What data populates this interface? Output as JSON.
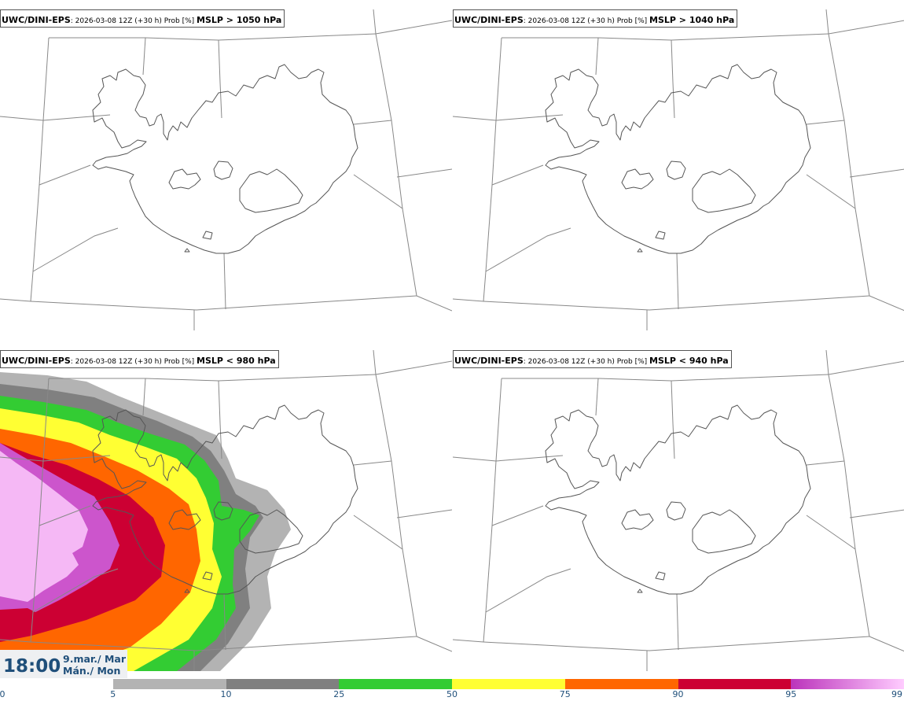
{
  "panels": [
    {
      "model": "UWC/DINI-EPS",
      "meta": ": 2026-03-08 12Z (+30 h) Prob [%] ",
      "field": "MSLP > 1050 hPa",
      "shaded": false
    },
    {
      "model": "UWC/DINI-EPS",
      "meta": ": 2026-03-08 12Z (+30 h) Prob [%] ",
      "field": "MSLP > 1040 hPa",
      "shaded": false
    },
    {
      "model": "UWC/DINI-EPS",
      "meta": ": 2026-03-08 12Z (+30 h) Prob [%] ",
      "field": "MSLP < 980 hPa",
      "shaded": true
    },
    {
      "model": "UWC/DINI-EPS",
      "meta": ": 2026-03-08 12Z (+30 h) Prob [%] ",
      "field": "MSLP < 940 hPa",
      "shaded": false
    }
  ],
  "valid_time": {
    "time": "18:00",
    "date_line1": "9.mar./ Mar",
    "date_line2": "Mán./ Mon"
  },
  "colorbar": {
    "ticks": [
      "0",
      "5",
      "10",
      "25",
      "50",
      "75",
      "90",
      "95",
      "99"
    ],
    "bins": [
      {
        "from": 5,
        "to": 10,
        "color": "#b3b3b3"
      },
      {
        "from": 10,
        "to": 25,
        "color": "#808080"
      },
      {
        "from": 25,
        "to": 50,
        "color": "#33cc33"
      },
      {
        "from": 50,
        "to": 75,
        "color": "#ffff33"
      },
      {
        "from": 75,
        "to": 90,
        "color": "#ff6600"
      },
      {
        "from": 90,
        "to": 95,
        "color": "#cc0033"
      },
      {
        "from": 95,
        "to": 99,
        "color": "linear-gradient(90deg,#bb33bb,#ffccff)"
      }
    ]
  },
  "colors": {
    "coast": "#555555",
    "grid": "#888888",
    "timetext": "#1f4f7a"
  }
}
